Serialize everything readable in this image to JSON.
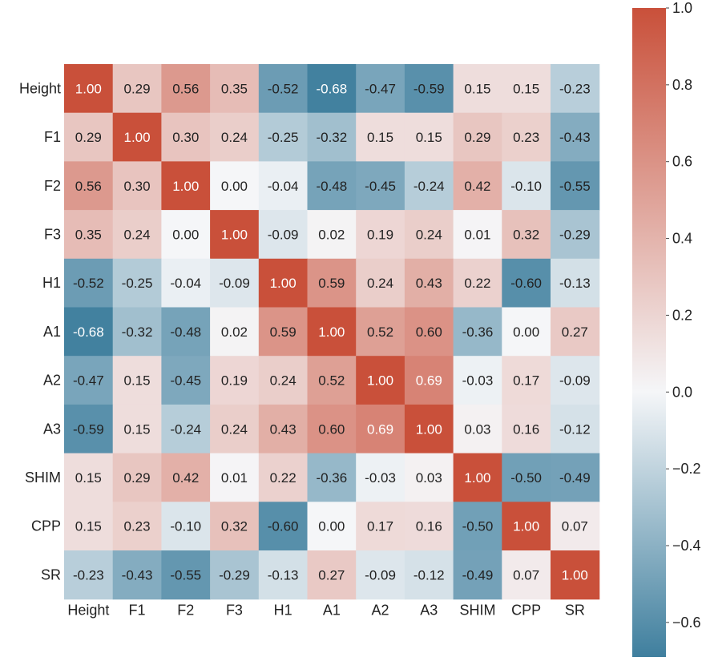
{
  "chart_data": {
    "type": "heatmap",
    "title": "",
    "xlabel": "",
    "ylabel": "",
    "row_labels": [
      "Height",
      "F1",
      "F2",
      "F3",
      "H1",
      "A1",
      "A2",
      "A3",
      "SHIM",
      "CPP",
      "SR"
    ],
    "col_labels": [
      "Height",
      "F1",
      "F2",
      "F3",
      "H1",
      "A1",
      "A2",
      "A3",
      "SHIM",
      "CPP",
      "SR"
    ],
    "values": [
      [
        1.0,
        0.29,
        0.56,
        0.35,
        -0.52,
        -0.68,
        -0.47,
        -0.59,
        0.15,
        0.15,
        -0.23
      ],
      [
        0.29,
        1.0,
        0.3,
        0.24,
        -0.25,
        -0.32,
        0.15,
        0.15,
        0.29,
        0.23,
        -0.43
      ],
      [
        0.56,
        0.3,
        1.0,
        0.0,
        -0.04,
        -0.48,
        -0.45,
        -0.24,
        0.42,
        -0.1,
        -0.55
      ],
      [
        0.35,
        0.24,
        0.0,
        1.0,
        -0.09,
        0.02,
        0.19,
        0.24,
        0.01,
        0.32,
        -0.29
      ],
      [
        -0.52,
        -0.25,
        -0.04,
        -0.09,
        1.0,
        0.59,
        0.24,
        0.43,
        0.22,
        -0.6,
        -0.13
      ],
      [
        -0.68,
        -0.32,
        -0.48,
        0.02,
        0.59,
        1.0,
        0.52,
        0.6,
        -0.36,
        0.0,
        0.27
      ],
      [
        -0.47,
        0.15,
        -0.45,
        0.19,
        0.24,
        0.52,
        1.0,
        0.69,
        -0.03,
        0.17,
        -0.09
      ],
      [
        -0.59,
        0.15,
        -0.24,
        0.24,
        0.43,
        0.6,
        0.69,
        1.0,
        0.03,
        0.16,
        -0.12
      ],
      [
        0.15,
        0.29,
        0.42,
        0.01,
        0.22,
        -0.36,
        -0.03,
        0.03,
        1.0,
        -0.5,
        -0.49
      ],
      [
        0.15,
        0.23,
        -0.1,
        0.32,
        -0.6,
        0.0,
        0.17,
        0.16,
        -0.5,
        1.0,
        0.07
      ],
      [
        -0.23,
        -0.43,
        -0.55,
        -0.29,
        -0.13,
        0.27,
        -0.09,
        -0.12,
        -0.49,
        0.07,
        1.0
      ]
    ],
    "cell_labels": [
      [
        "1.00",
        "0.29",
        "0.56",
        "0.35",
        "-0.52",
        "-0.68",
        "-0.47",
        "-0.59",
        "0.15",
        "0.15",
        "-0.23"
      ],
      [
        "0.29",
        "1.00",
        "0.30",
        "0.24",
        "-0.25",
        "-0.32",
        "0.15",
        "0.15",
        "0.29",
        "0.23",
        "-0.43"
      ],
      [
        "0.56",
        "0.30",
        "1.00",
        "0.00",
        "-0.04",
        "-0.48",
        "-0.45",
        "-0.24",
        "0.42",
        "-0.10",
        "-0.55"
      ],
      [
        "0.35",
        "0.24",
        "0.00",
        "1.00",
        "-0.09",
        "0.02",
        "0.19",
        "0.24",
        "0.01",
        "0.32",
        "-0.29"
      ],
      [
        "-0.52",
        "-0.25",
        "-0.04",
        "-0.09",
        "1.00",
        "0.59",
        "0.24",
        "0.43",
        "0.22",
        "-0.60",
        "-0.13"
      ],
      [
        "-0.68",
        "-0.32",
        "-0.48",
        "0.02",
        "0.59",
        "1.00",
        "0.52",
        "0.60",
        "-0.36",
        "0.00",
        "0.27"
      ],
      [
        "-0.47",
        "0.15",
        "-0.45",
        "0.19",
        "0.24",
        "0.52",
        "1.00",
        "0.69",
        "-0.03",
        "0.17",
        "-0.09"
      ],
      [
        "-0.59",
        "0.15",
        "-0.24",
        "0.24",
        "0.43",
        "0.60",
        "0.69",
        "1.00",
        "0.03",
        "0.16",
        "-0.12"
      ],
      [
        "0.15",
        "0.29",
        "0.42",
        "0.01",
        "0.22",
        "-0.36",
        "-0.03",
        "0.03",
        "1.00",
        "-0.50",
        "-0.49"
      ],
      [
        "0.15",
        "0.23",
        "-0.10",
        "0.32",
        "-0.60",
        "0.00",
        "0.17",
        "0.16",
        "-0.50",
        "1.00",
        "0.07"
      ],
      [
        "-0.23",
        "-0.43",
        "-0.55",
        "-0.29",
        "-0.13",
        "0.27",
        "-0.09",
        "-0.12",
        "-0.49",
        "0.07",
        "1.00"
      ]
    ],
    "colorbar": {
      "range": [
        -0.69,
        1.0
      ],
      "ticks": [
        1.0,
        0.8,
        0.6,
        0.4,
        0.2,
        0.0,
        -0.2,
        -0.4,
        -0.6
      ],
      "tick_labels": [
        "1.0",
        "0.8",
        "0.6",
        "0.4",
        "0.2",
        "0.0",
        "−0.2",
        "−0.4",
        "−0.6"
      ],
      "colors": {
        "negative": "#3f7f9e",
        "neutral": "#f5f6f8",
        "positive": "#c9503a"
      }
    },
    "legend": "right"
  }
}
